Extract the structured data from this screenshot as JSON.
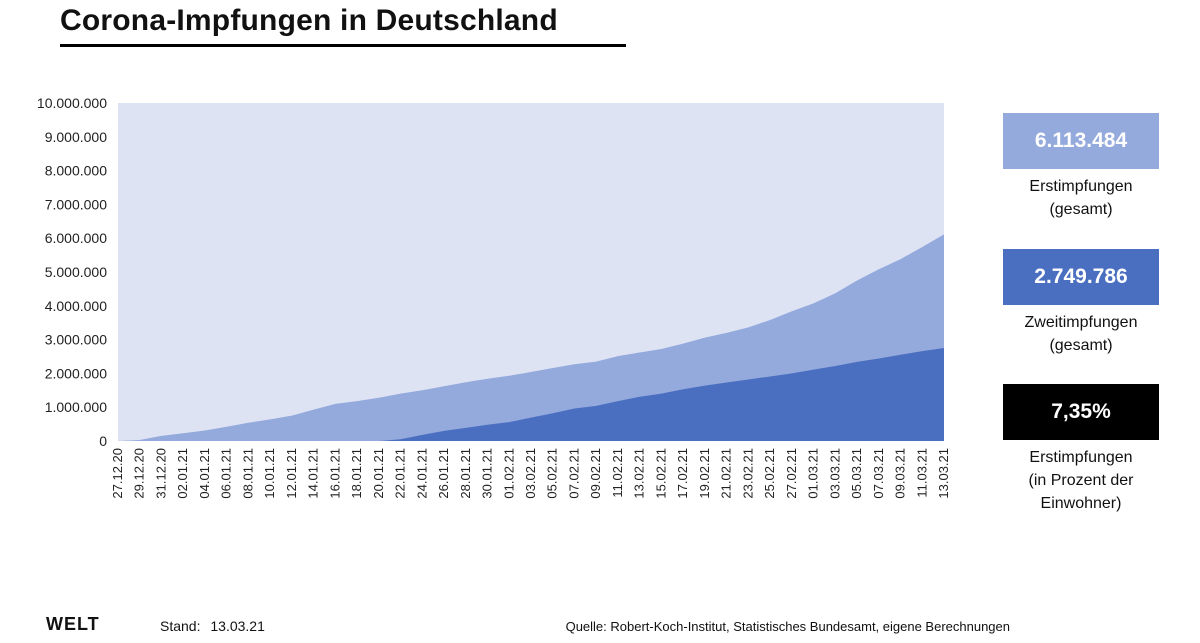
{
  "title": "Corona-Impfungen in Deutschland",
  "chart_data": {
    "type": "area",
    "title": "Corona-Impfungen in Deutschland",
    "ylim": [
      0,
      10000000
    ],
    "yticks": [
      "0",
      "1.000.000",
      "2.000.000",
      "3.000.000",
      "4.000.000",
      "5.000.000",
      "6.000.000",
      "7.000.000",
      "8.000.000",
      "9.000.000",
      "10.000.000"
    ],
    "x_labels": [
      "27.12.20",
      "29.12.20",
      "31.12.20",
      "02.01.21",
      "04.01.21",
      "06.01.21",
      "08.01.21",
      "10.01.21",
      "12.01.21",
      "14.01.21",
      "16.01.21",
      "18.01.21",
      "20.01.21",
      "22.01.21",
      "24.01.21",
      "26.01.21",
      "28.01.21",
      "30.01.21",
      "01.02.21",
      "03.02.21",
      "05.02.21",
      "07.02.21",
      "09.02.21",
      "11.02.21",
      "13.02.21",
      "15.02.21",
      "17.02.21",
      "19.02.21",
      "21.02.21",
      "23.02.21",
      "25.02.21",
      "27.02.21",
      "01.03.21",
      "03.03.21",
      "05.03.21",
      "07.03.21",
      "09.03.21",
      "11.03.21",
      "13.03.21"
    ],
    "series": [
      {
        "name": "Erstimpfungen",
        "values": [
          0,
          30000,
          150000,
          230000,
          310000,
          420000,
          540000,
          640000,
          750000,
          930000,
          1100000,
          1180000,
          1280000,
          1400000,
          1500000,
          1620000,
          1740000,
          1840000,
          1930000,
          2040000,
          2160000,
          2270000,
          2350000,
          2510000,
          2620000,
          2720000,
          2880000,
          3060000,
          3200000,
          3360000,
          3580000,
          3840000,
          4070000,
          4370000,
          4750000,
          5080000,
          5380000,
          5740000,
          6113484
        ],
        "color": "#94a9dc"
      },
      {
        "name": "Zweitimpfungen",
        "values": [
          0,
          0,
          0,
          0,
          0,
          0,
          0,
          0,
          0,
          0,
          0,
          0,
          0,
          50000,
          180000,
          300000,
          390000,
          480000,
          560000,
          690000,
          820000,
          960000,
          1040000,
          1180000,
          1310000,
          1400000,
          1530000,
          1640000,
          1730000,
          1820000,
          1910000,
          2000000,
          2110000,
          2220000,
          2340000,
          2440000,
          2550000,
          2660000,
          2749786
        ],
        "color": "#4b6fc0"
      }
    ],
    "background": "#dde3f3"
  },
  "stats": [
    {
      "value": "6.113.484",
      "label_lines": [
        "Erstimpfungen",
        "(gesamt)"
      ],
      "color": "#94a9dc"
    },
    {
      "value": "2.749.786",
      "label_lines": [
        "Zweitimpfungen",
        "(gesamt)"
      ],
      "color": "#4b6fc0"
    },
    {
      "value": "7,35%",
      "label_lines": [
        "Erstimpfungen",
        "(in Prozent der",
        "Einwohner)"
      ],
      "color": "#000000"
    }
  ],
  "footer": {
    "logo": "WELT",
    "stand_label": "Stand:",
    "stand_date": "13.03.21",
    "source": "Quelle: Robert-Koch-Institut, Statistisches Bundesamt, eigene Berechnungen"
  }
}
